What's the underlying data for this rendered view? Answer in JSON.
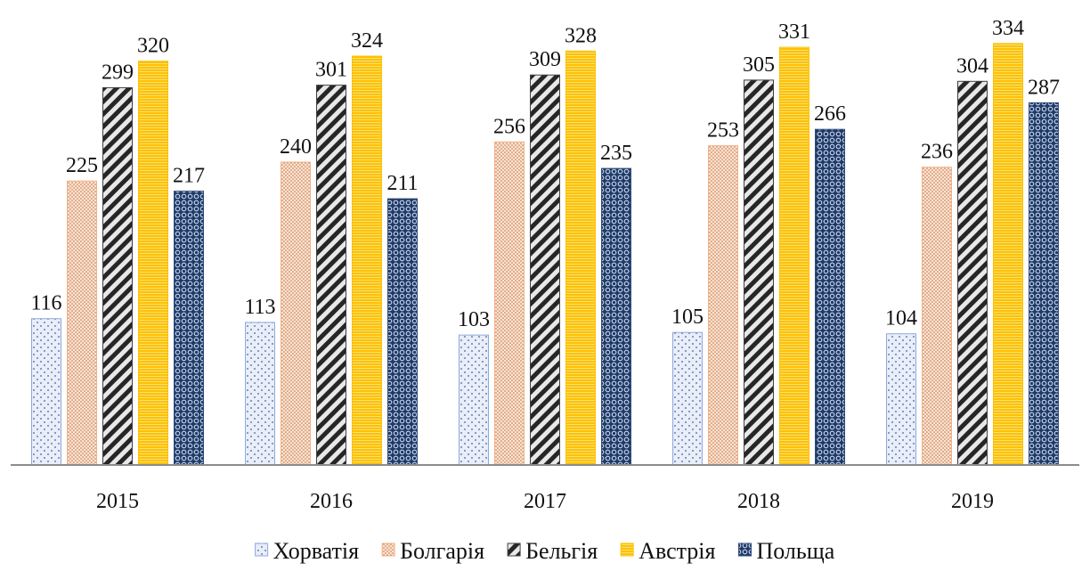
{
  "chart_data": {
    "type": "bar",
    "title": "",
    "xlabel": "",
    "ylabel": "",
    "categories": [
      "2015",
      "2016",
      "2017",
      "2018",
      "2019"
    ],
    "ylim": [
      0,
      345
    ],
    "grid": false,
    "legend_position": "bottom",
    "data_labels": true,
    "series": [
      {
        "name": "Хорватія",
        "color": "#8fa8dc",
        "pattern": "dots-sparse",
        "values": [
          116,
          113,
          103,
          105,
          104
        ]
      },
      {
        "name": "Болгарія",
        "color": "#f4b183",
        "pattern": "dots-dense",
        "values": [
          225,
          240,
          256,
          253,
          236
        ]
      },
      {
        "name": "Бельгія",
        "color": "#404040",
        "pattern": "diagonal-stripes",
        "values": [
          299,
          301,
          309,
          305,
          304
        ]
      },
      {
        "name": "Австрія",
        "color": "#ffc000",
        "pattern": "horizontal-lines",
        "values": [
          320,
          324,
          328,
          331,
          334
        ]
      },
      {
        "name": "Польща",
        "color": "#2f4b7c",
        "pattern": "circles-grid",
        "values": [
          217,
          211,
          235,
          266,
          287
        ]
      }
    ]
  }
}
